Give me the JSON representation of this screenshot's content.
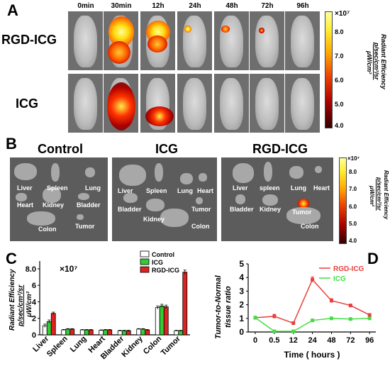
{
  "panel_a": {
    "letter": "A",
    "timepoints": [
      "0min",
      "30min",
      "12h",
      "24h",
      "48h",
      "72h",
      "96h"
    ],
    "rows": [
      {
        "label": "RGD-ICG"
      },
      {
        "label": "ICG"
      }
    ],
    "colorbar": {
      "multiplier": "×10⁷",
      "ticks": [
        "8.0",
        "7.0",
        "6.0",
        "5.0",
        "4.0"
      ],
      "title_line1": "Radiant Efficiency",
      "title_line2": "p/sec/cm²/sr",
      "title_line3": "μW/cm²"
    }
  },
  "panel_b": {
    "letter": "B",
    "groups": [
      {
        "title": "Control",
        "labels": [
          "Liver",
          "Spleen",
          "Lung",
          "Heart",
          "Kidney",
          "Bladder",
          "Colon",
          "Tumor"
        ]
      },
      {
        "title": "ICG",
        "labels": [
          "Liver",
          "Spleen",
          "Lung",
          "Heart",
          "Bladder",
          "Tumor",
          "Kidney",
          "Colon"
        ]
      },
      {
        "title": "RGD-ICG",
        "labels": [
          "Liver",
          "spleen",
          "Lung",
          "Heart",
          "Bladder",
          "Kidney",
          "Tumor",
          "Colon"
        ]
      }
    ],
    "colorbar": {
      "multiplier": "×10⁷",
      "ticks": [
        "8.0",
        "7.0",
        "6.0",
        "5.0",
        "4.0"
      ],
      "title_line1": "Radiant Efficiency",
      "title_line2": "p/sec/cm²/sr",
      "title_line3": "μW/cm²"
    }
  },
  "panel_c": {
    "letter": "C",
    "multiplier": "×10⁷",
    "ylabel_line1": "Radiant Efficiency",
    "ylabel_line2": "p/sec/cm²/sr",
    "ylabel_line3": "μW/cm²"
  },
  "panel_d": {
    "letter": "D",
    "ylabel_line1": "Tumor-to-Normal",
    "ylabel_line2": "tissue ratio"
  },
  "colors": {
    "control": "#ffffff",
    "icg": "#33cc33",
    "rgd_icg": "#dd2222",
    "d_rgd": "#e8403c",
    "d_icg": "#44dd44"
  },
  "chart_data": [
    {
      "type": "bar",
      "panel": "C",
      "categories": [
        "Liver",
        "Spleen",
        "Lung",
        "Heart",
        "Bladder",
        "Kidney",
        "Colon",
        "Tumor"
      ],
      "series": [
        {
          "name": "Control",
          "values": [
            1.1,
            0.6,
            0.6,
            0.55,
            0.5,
            0.7,
            3.3,
            0.5
          ],
          "errors": [
            0.2,
            0.05,
            0.05,
            0.05,
            0.05,
            0.05,
            0.2,
            0.05
          ]
        },
        {
          "name": "ICG",
          "values": [
            1.6,
            0.7,
            0.6,
            0.6,
            0.5,
            0.7,
            3.5,
            0.5
          ],
          "errors": [
            0.2,
            0.05,
            0.05,
            0.05,
            0.05,
            0.05,
            0.2,
            0.05
          ]
        },
        {
          "name": "RGD-ICG",
          "values": [
            2.6,
            0.7,
            0.6,
            0.6,
            0.5,
            0.6,
            3.4,
            7.6
          ],
          "errors": [
            0.15,
            0.05,
            0.05,
            0.05,
            0.05,
            0.05,
            0.2,
            0.25
          ]
        }
      ],
      "yticks": [
        "0",
        "2",
        "4",
        "6",
        "8.0"
      ],
      "ylim": [
        0,
        8.6
      ],
      "legend_position": "top-right"
    },
    {
      "type": "line",
      "panel": "D",
      "x": [
        "0",
        "0.5",
        "12",
        "24",
        "48",
        "72",
        "96"
      ],
      "xlabel": "Time ( hours )",
      "series": [
        {
          "name": "RGD-ICG",
          "values": [
            1.05,
            1.15,
            0.65,
            3.85,
            2.3,
            1.95,
            1.25
          ],
          "errors": [
            0.1,
            0.15,
            0.1,
            0.2,
            0.15,
            0.1,
            0.1
          ]
        },
        {
          "name": "ICG",
          "values": [
            1.05,
            0.05,
            0.05,
            0.85,
            1.0,
            0.95,
            1.0
          ],
          "errors": [
            0.05,
            0.05,
            0.05,
            0.1,
            0.1,
            0.05,
            0.05
          ]
        }
      ],
      "yticks": [
        "0",
        "1",
        "2",
        "3",
        "4",
        "5"
      ],
      "ylim": [
        0,
        5
      ],
      "legend_position": "top-right"
    }
  ]
}
